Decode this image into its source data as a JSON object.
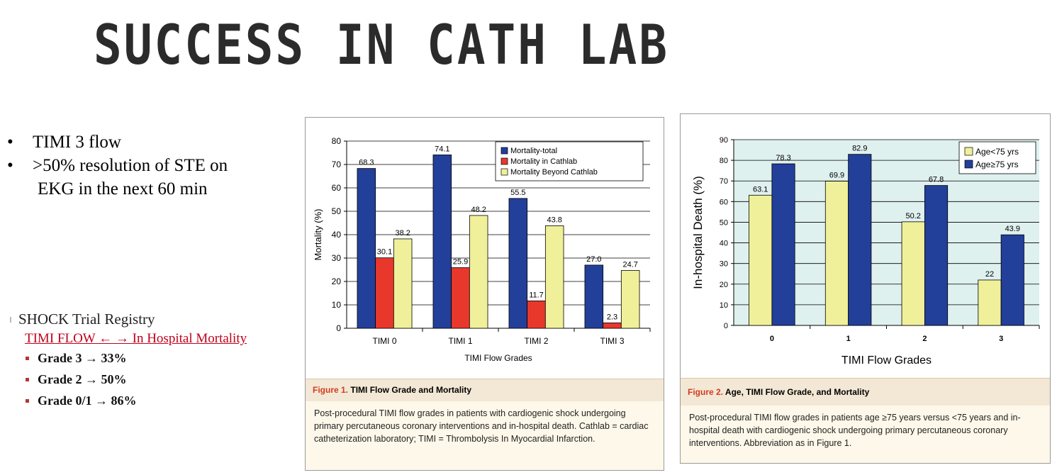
{
  "slide": {
    "title": "SUCCESS IN CATH LAB",
    "bullets": [
      {
        "marker": "•",
        "text": "TIMI 3 flow"
      },
      {
        "marker": "•",
        "text": ">50% resolution of STE on",
        "cont": "EKG in the next 60 min"
      }
    ],
    "registry": {
      "header": "SHOCK Trial Registry",
      "subheader": "TIMI FLOW ← → In Hospital Mortality",
      "items": [
        "Grade 3 → 33%",
        "Grade 2 → 50%",
        "Grade 0/1 → 86%"
      ]
    }
  },
  "figure1": {
    "caption_num": "Figure 1.",
    "caption_title": "TIMI Flow Grade and Mortality",
    "caption_text": "Post-procedural TIMI flow grades in patients with cardiogenic shock undergoing primary percutaneous coronary interventions and in-hospital death. Cathlab = cardiac catheterization laboratory; TIMI = Thrombolysis In Myocardial Infarction."
  },
  "figure2": {
    "caption_num": "Figure 2.",
    "caption_title": "Age, TIMI Flow Grade, and Mortality",
    "caption_text": "Post-procedural TIMI flow grades in patients age ≥75 years versus <75 years and in-hospital death with cardiogenic shock undergoing primary percutaneous coronary interventions. Abbreviation as in Figure 1."
  },
  "chart_data": [
    {
      "type": "bar",
      "categories": [
        "TIMI 0",
        "TIMI 1",
        "TIMI 2",
        "TIMI 3"
      ],
      "series": [
        {
          "name": "Mortality-total",
          "color": "#223f9a",
          "values": [
            68.3,
            74.1,
            55.5,
            27.0
          ],
          "labels": [
            "68.3",
            "74.1",
            "55.5",
            "27.0"
          ]
        },
        {
          "name": "Mortality in Cathlab",
          "color": "#e8382c",
          "values": [
            30.1,
            25.9,
            11.7,
            2.3
          ],
          "labels": [
            "30.1",
            "25.9",
            "11.7",
            "2.3"
          ]
        },
        {
          "name": "Mortality Beyond Cathlab",
          "color": "#f0f09a",
          "values": [
            38.2,
            48.2,
            43.8,
            24.7
          ],
          "labels": [
            "38.2",
            "48.2",
            "43.8",
            "24.7"
          ]
        }
      ],
      "xlabel": "TIMI Flow Grades",
      "ylabel": "Mortality (%)",
      "ylim": [
        0,
        80
      ],
      "yticks": [
        0,
        10,
        20,
        30,
        40,
        50,
        60,
        70,
        80
      ],
      "grid": true,
      "legend": "top-right",
      "plot_bg": "#ffffff"
    },
    {
      "type": "bar",
      "categories": [
        "0",
        "1",
        "2",
        "3"
      ],
      "series": [
        {
          "name": "Age<75 yrs",
          "color": "#f0f09a",
          "values": [
            63.1,
            69.9,
            50.2,
            22
          ],
          "labels": [
            "63.1",
            "69.9",
            "50.2",
            "22"
          ]
        },
        {
          "name": "Age≥75 yrs",
          "color": "#223f9a",
          "values": [
            78.3,
            82.9,
            67.8,
            43.9
          ],
          "labels": [
            "78.3",
            "82.9",
            "67.8",
            "43.9"
          ]
        }
      ],
      "xlabel": "TIMI Flow Grades",
      "ylabel": "In-hospital Death (%)",
      "ylim": [
        0,
        90
      ],
      "yticks": [
        0,
        10,
        20,
        30,
        40,
        50,
        60,
        70,
        80,
        90
      ],
      "grid": true,
      "legend": "top-right",
      "plot_bg": "#dff1ef"
    }
  ]
}
